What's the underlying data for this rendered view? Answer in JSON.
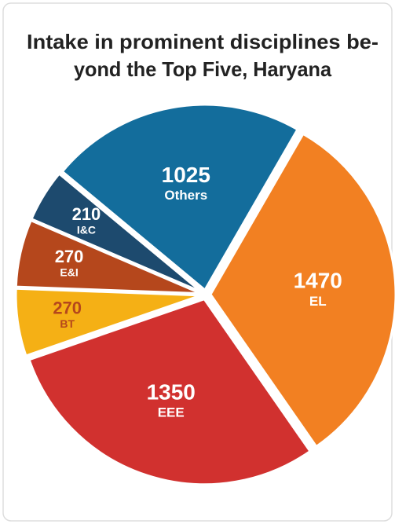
{
  "chart_data": {
    "type": "pie",
    "title": [
      "Intake in prominent disciplines be-",
      "yond the Top Five, Haryana"
    ],
    "categories": [
      "EL",
      "EEE",
      "BT",
      "E&I",
      "I&C",
      "Others"
    ],
    "values": [
      1470,
      1350,
      270,
      270,
      210,
      1025
    ],
    "colors": [
      "#f28022",
      "#d1312f",
      "#f5b015",
      "#b5471c",
      "#1d4a6e",
      "#136d9c"
    ],
    "label_colors": [
      "#ffffff",
      "#ffffff",
      "#b5471c",
      "#ffffff",
      "#ffffff",
      "#ffffff"
    ]
  }
}
